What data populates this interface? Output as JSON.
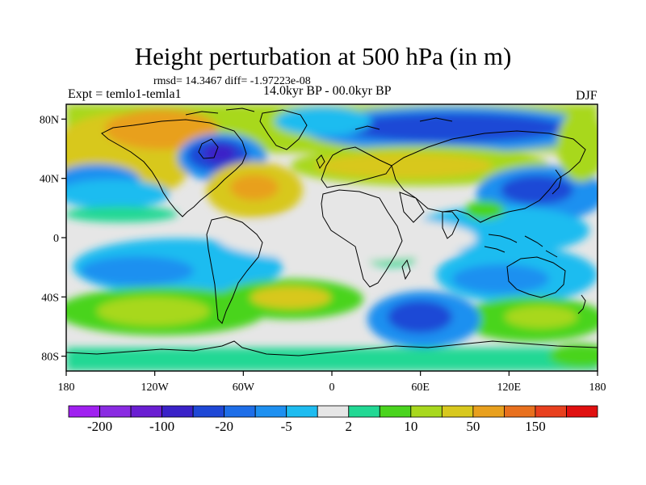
{
  "title": "Height perturbation at 500 hPa (in m)",
  "stats": "rmsd= 14.3467 diff= -1.97223e-08",
  "experiment": "Expt = temlo1-temla1",
  "period": "14.0kyr BP - 00.0kyr BP",
  "season": "DJF",
  "map": {
    "projection": "cylindrical equidistant",
    "lon_range": [
      -180,
      180
    ],
    "lat_range": [
      -90,
      90
    ],
    "lat_ticks": [
      {
        "value": 80,
        "label": "80N"
      },
      {
        "value": 40,
        "label": "40N"
      },
      {
        "value": 0,
        "label": "0"
      },
      {
        "value": -40,
        "label": "40S"
      },
      {
        "value": -80,
        "label": "80S"
      }
    ],
    "lon_ticks": [
      {
        "value": -180,
        "label": "180"
      },
      {
        "value": -120,
        "label": "120W"
      },
      {
        "value": -60,
        "label": "60W"
      },
      {
        "value": 0,
        "label": "0"
      },
      {
        "value": 60,
        "label": "60E"
      },
      {
        "value": 120,
        "label": "120E"
      },
      {
        "value": 180,
        "label": "180"
      }
    ]
  },
  "colorbar": {
    "colors": [
      "#a020f0",
      "#8a2be2",
      "#6a1ed2",
      "#3a22c8",
      "#1f48d6",
      "#1e6ee8",
      "#1e90f0",
      "#1ebcf0",
      "#e6e6e6",
      "#22d894",
      "#4ad41e",
      "#a8d81e",
      "#d8c81e",
      "#e8a01e",
      "#e8701e",
      "#e8401e",
      "#e01010"
    ],
    "labels": [
      {
        "after_box": 1,
        "text": "-200"
      },
      {
        "after_box": 3,
        "text": "-100"
      },
      {
        "after_box": 5,
        "text": "-20"
      },
      {
        "after_box": 7,
        "text": "-5"
      },
      {
        "after_box": 9,
        "text": "2"
      },
      {
        "after_box": 11,
        "text": "10"
      },
      {
        "after_box": 13,
        "text": "50"
      },
      {
        "after_box": 15,
        "text": "150"
      }
    ]
  }
}
